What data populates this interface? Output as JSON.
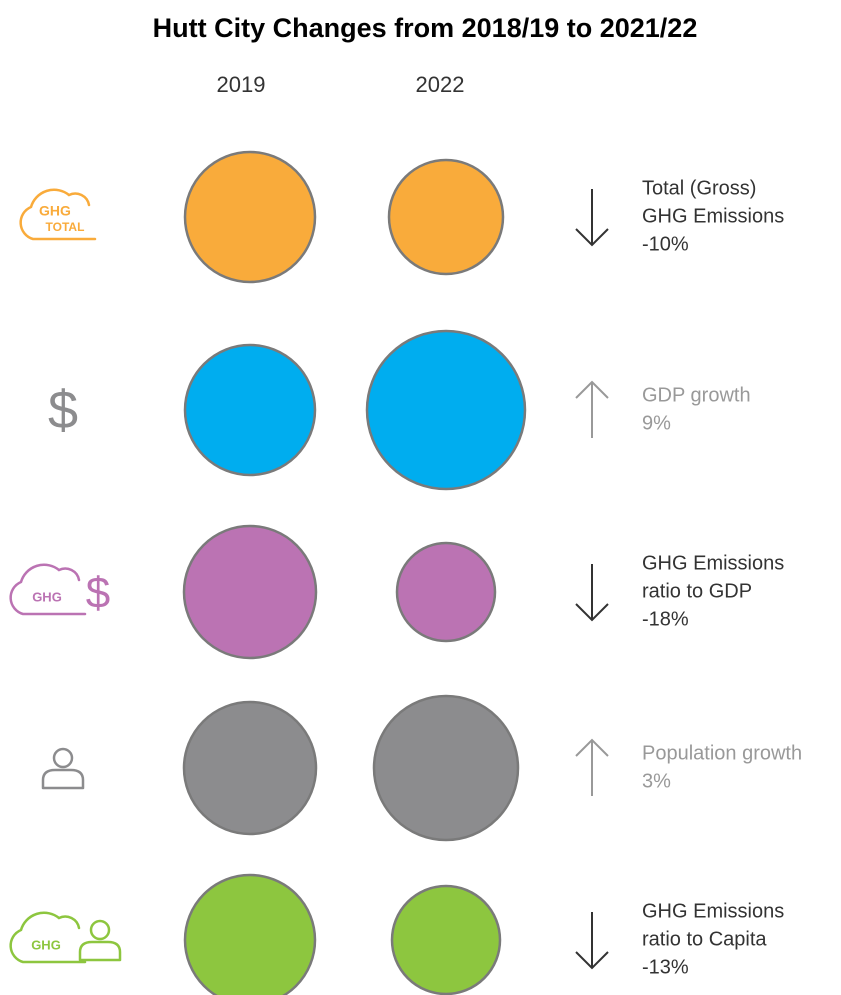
{
  "title": "Hutt City Changes from 2018/19 to 2021/22",
  "columns": [
    "2019",
    "2022"
  ],
  "rows": [
    {
      "icon_text": [
        "GHG",
        "TOTAL"
      ],
      "color": "#f9ab3b",
      "direction": "down",
      "label": [
        "Total (Gross)",
        "GHG Emissions"
      ],
      "change": "-10%"
    },
    {
      "icon_text": [
        "$"
      ],
      "color": "#00adef",
      "direction": "up",
      "label": [
        "GDP growth"
      ],
      "change": "9%"
    },
    {
      "icon_text": [
        "GHG",
        "$"
      ],
      "color": "#bb73b3",
      "direction": "down",
      "label": [
        "GHG Emissions",
        "ratio to GDP"
      ],
      "change": "-18%"
    },
    {
      "icon_text": [],
      "color": "#8c8c8e",
      "direction": "up",
      "label": [
        "Population growth"
      ],
      "change": "3%"
    },
    {
      "icon_text": [
        "GHG"
      ],
      "color": "#8dc63f",
      "direction": "down",
      "label": [
        "GHG Emissions",
        "ratio to Capita"
      ],
      "change": "-13%"
    }
  ]
}
